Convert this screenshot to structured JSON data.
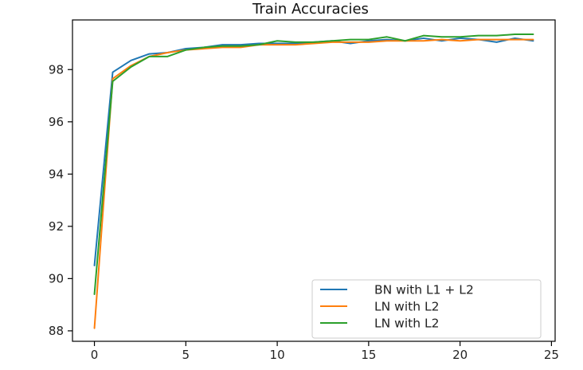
{
  "chart_data": {
    "type": "line",
    "title": "Train Accuracies",
    "xlabel": "",
    "ylabel": "",
    "xlim": [
      -1.2,
      25.2
    ],
    "ylim": [
      87.6,
      99.9
    ],
    "xticks": [
      0,
      5,
      10,
      15,
      20,
      25
    ],
    "yticks": [
      88,
      90,
      92,
      94,
      96,
      98
    ],
    "grid": false,
    "legend_position": "lower-right",
    "x": [
      0,
      1,
      2,
      3,
      4,
      5,
      6,
      7,
      8,
      9,
      10,
      11,
      12,
      13,
      14,
      15,
      16,
      17,
      18,
      19,
      20,
      21,
      22,
      23,
      24
    ],
    "series": [
      {
        "name": "BN with L1 + L2",
        "color": "#1f77b4",
        "values": [
          90.5,
          97.9,
          98.35,
          98.6,
          98.65,
          98.8,
          98.85,
          98.95,
          98.95,
          99.0,
          99.0,
          99.0,
          99.05,
          99.1,
          99.0,
          99.1,
          99.15,
          99.1,
          99.2,
          99.1,
          99.2,
          99.15,
          99.05,
          99.2,
          99.1
        ]
      },
      {
        "name": "LN with L2",
        "color": "#ff7f0e",
        "values": [
          88.1,
          97.65,
          98.15,
          98.5,
          98.65,
          98.75,
          98.8,
          98.85,
          98.85,
          98.95,
          98.95,
          98.95,
          99.0,
          99.05,
          99.05,
          99.05,
          99.1,
          99.1,
          99.1,
          99.15,
          99.1,
          99.15,
          99.15,
          99.15,
          99.15
        ]
      },
      {
        "name": "LN with L2",
        "color": "#2ca02c",
        "values": [
          89.4,
          97.55,
          98.1,
          98.5,
          98.5,
          98.75,
          98.85,
          98.9,
          98.9,
          98.95,
          99.1,
          99.05,
          99.05,
          99.1,
          99.15,
          99.15,
          99.25,
          99.1,
          99.3,
          99.25,
          99.25,
          99.3,
          99.3,
          99.35,
          99.35
        ]
      }
    ]
  }
}
